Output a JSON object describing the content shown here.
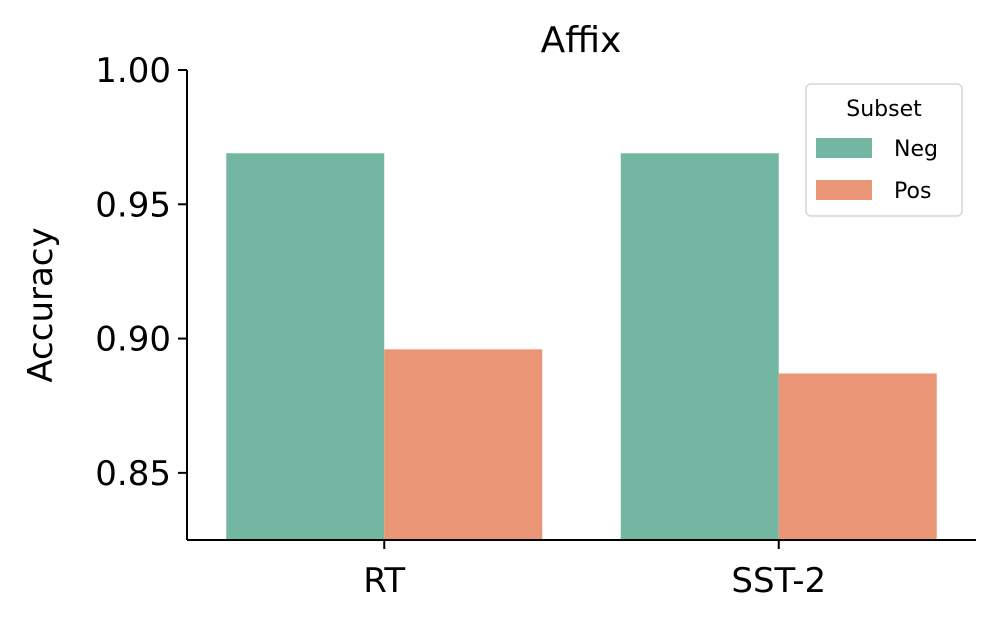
{
  "chart_data": {
    "type": "bar",
    "title": "Affix",
    "xlabel": "",
    "ylabel": "Accuracy",
    "categories": [
      "RT",
      "SST-2"
    ],
    "series": [
      {
        "name": "Neg",
        "values": [
          0.969,
          0.969
        ],
        "color": "#73b7a2"
      },
      {
        "name": "Pos",
        "values": [
          0.896,
          0.887
        ],
        "color": "#e99576"
      }
    ],
    "ylim": [
      0.825,
      1.0
    ],
    "yticks": [
      "0.85",
      "0.90",
      "0.95",
      "1.00"
    ],
    "grid": false,
    "legend": {
      "title": "Subset",
      "placement": "top-right"
    }
  }
}
